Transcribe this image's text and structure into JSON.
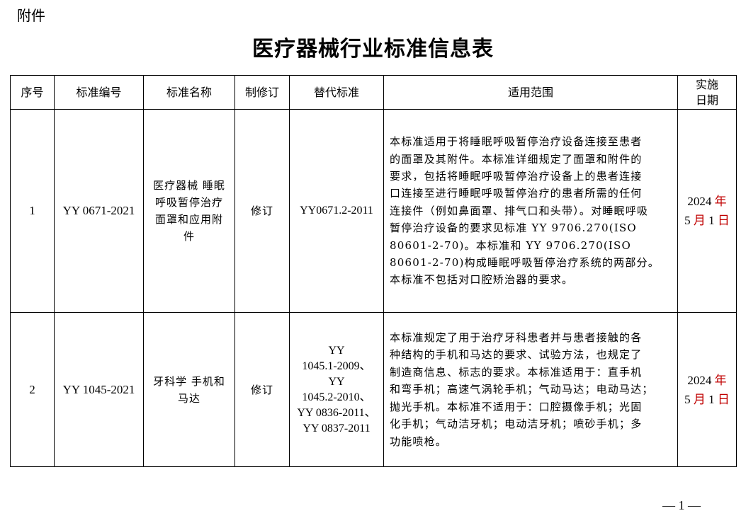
{
  "attachment_label": "附件",
  "title": "医疗器械行业标准信息表",
  "headers": {
    "no": "序号",
    "code": "标准编号",
    "name": "标准名称",
    "revision": "制修订",
    "replaces": "替代标准",
    "scope": "适用范围",
    "date_l1": "实施",
    "date_l2": "日期"
  },
  "rows": [
    {
      "no": "1",
      "code": "YY 0671-2021",
      "name": "医疗器械 睡眠呼吸暂停治疗 面罩和应用附件",
      "revision": "修订",
      "replaces": [
        "YY0671.2-2011"
      ],
      "scope": [
        "本标准适用于将睡眠呼吸暂停治疗设备连接至患者",
        "的面罩及其附件。本标准详细规定了面罩和附件的",
        "要求，包括将睡眠呼吸暂停治疗设备上的患者连接",
        "口连接至进行睡眠呼吸暂停治疗的患者所需的任何",
        "连接件（例如鼻面罩、排气口和头带）。对睡眠呼吸",
        "暂停治疗设备的要求见标准 YY 9706.270(ISO",
        "80601-2-70)。本标准和 YY 9706.270(ISO",
        "80601-2-70)构成睡眠呼吸暂停治疗系统的两部分。",
        "本标准不包括对口腔矫治器的要求。"
      ],
      "date": {
        "year": "2024",
        "year_unit": "年",
        "month": "5",
        "month_unit": "月",
        "day": "1",
        "day_unit": "日"
      }
    },
    {
      "no": "2",
      "code": "YY 1045-2021",
      "name": "牙科学 手机和马达",
      "revision": "修订",
      "replaces": [
        "YY",
        "1045.1-2009、",
        "YY",
        "1045.2-2010、",
        "YY 0836-2011、",
        "YY 0837-2011"
      ],
      "scope": [
        "本标准规定了用于治疗牙科患者并与患者接触的各",
        "种结构的手机和马达的要求、试验方法，也规定了",
        "制造商信息、标志的要求。本标准适用于：直手机",
        "和弯手机；高速气涡轮手机；气动马达；电动马达；",
        "抛光手机。本标准不适用于：口腔摄像手机；光固",
        "化手机；气动洁牙机；电动洁牙机；喷砂手机；多",
        "功能喷枪。"
      ],
      "date": {
        "year": "2024",
        "year_unit": "年",
        "month": "5",
        "month_unit": "月",
        "day": "1",
        "day_unit": "日"
      }
    }
  ],
  "page_number": "— 1 —",
  "colors": {
    "date_unit": "#c00000"
  }
}
